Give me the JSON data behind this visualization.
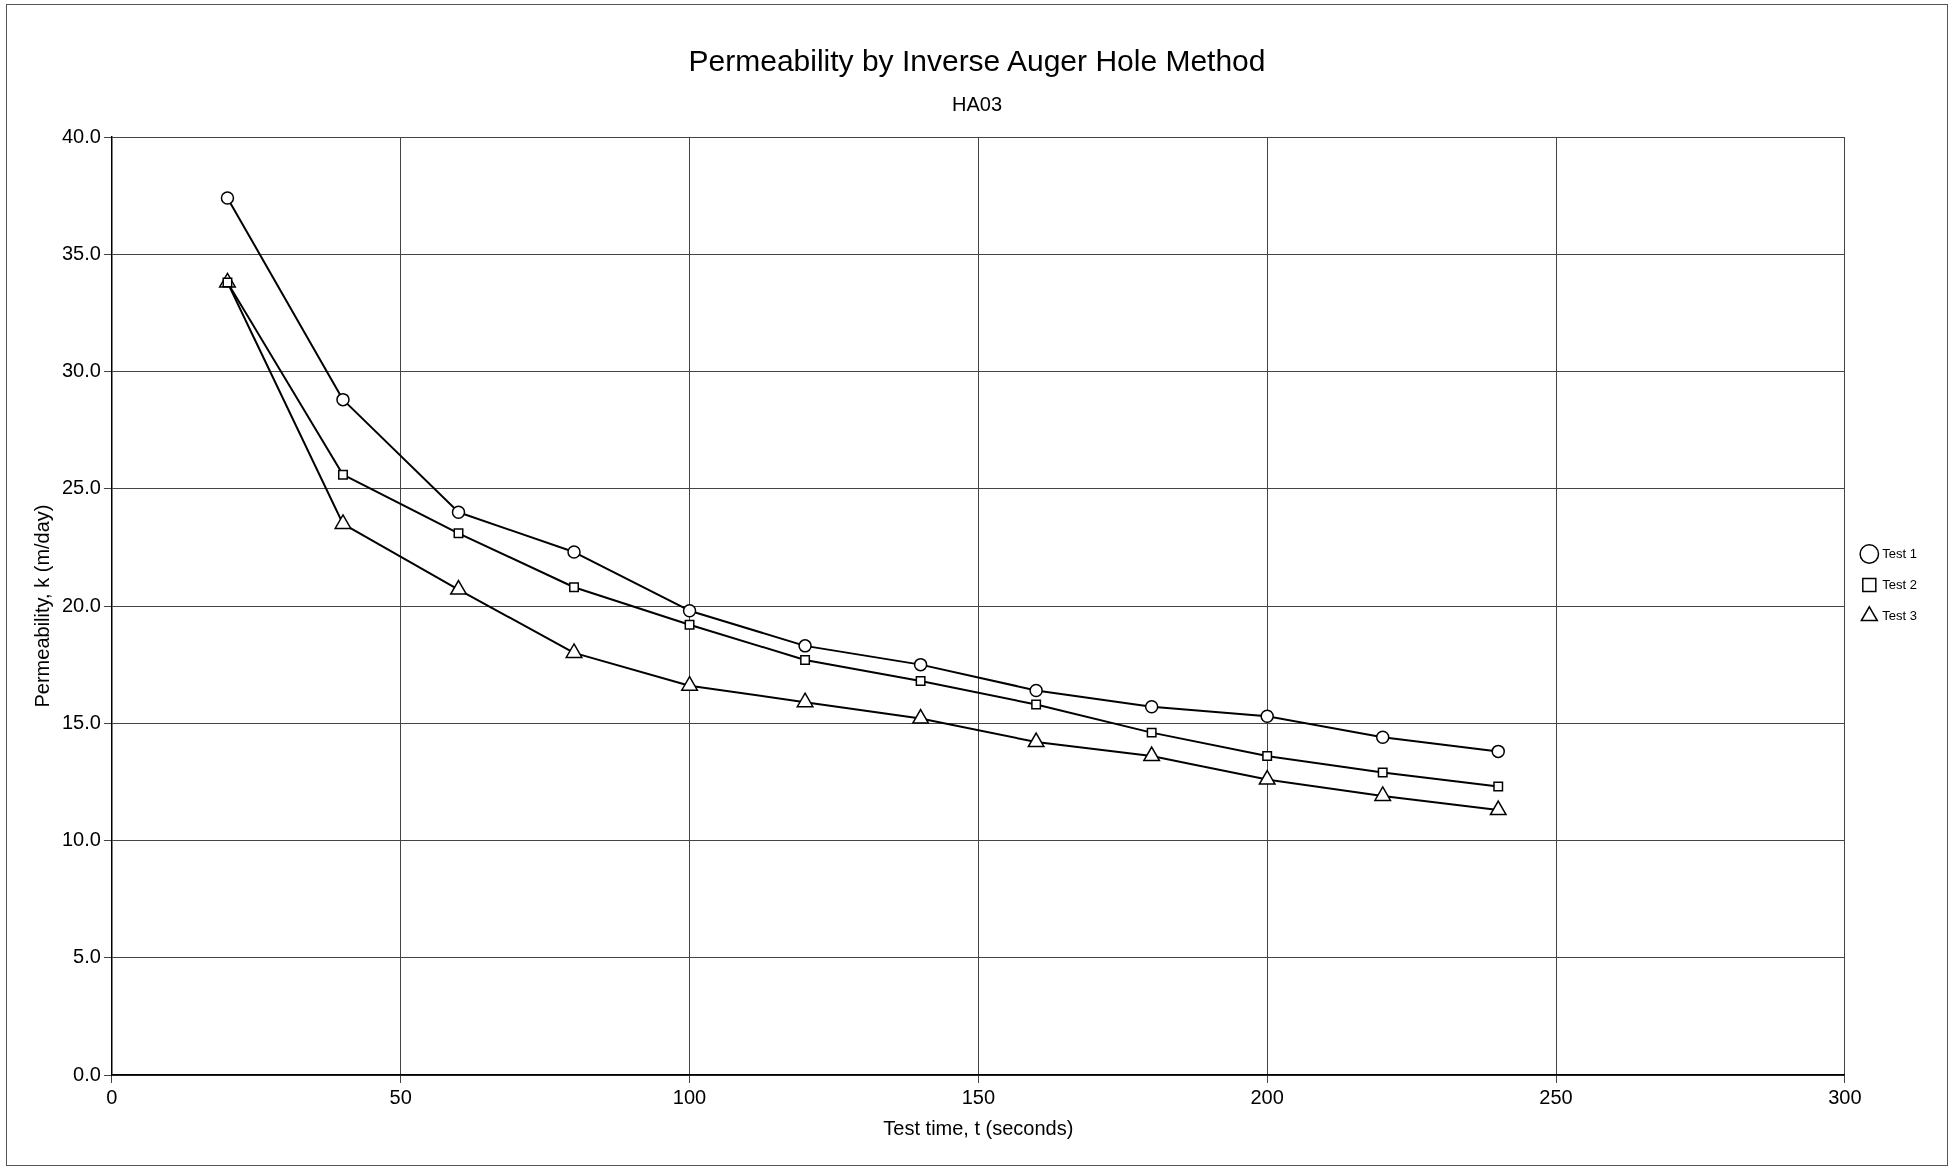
{
  "chart_data": {
    "type": "line",
    "title": "Permeability by Inverse Auger Hole Method",
    "subtitle": "HA03",
    "xlabel": "Test time, t (seconds)",
    "ylabel": "Permeability, k (m/day)",
    "x": [
      20,
      40,
      60,
      80,
      100,
      120,
      140,
      160,
      180,
      200,
      220,
      240
    ],
    "series": [
      {
        "name": "Test 1",
        "color": "#000000",
        "marker": "circle",
        "values": [
          37.4,
          28.8,
          24.0,
          22.3,
          19.8,
          18.3,
          17.5,
          16.4,
          15.7,
          15.3,
          14.4,
          13.8
        ]
      },
      {
        "name": "Test 2",
        "color": "#000000",
        "marker": "square",
        "values": [
          33.8,
          25.6,
          23.1,
          20.8,
          19.2,
          17.7,
          16.8,
          15.8,
          14.6,
          13.6,
          12.9,
          12.3
        ]
      },
      {
        "name": "Test 3",
        "color": "#000000",
        "marker": "triangle",
        "values": [
          33.8,
          23.5,
          20.7,
          18.0,
          16.6,
          15.9,
          15.2,
          14.2,
          13.6,
          12.6,
          11.9,
          11.3
        ]
      }
    ],
    "xlim": [
      0,
      300
    ],
    "xticks": [
      0,
      50,
      100,
      150,
      200,
      250,
      300
    ],
    "ylim": [
      0,
      40
    ],
    "yticks": [
      {
        "value": 0,
        "label": "0.0"
      },
      {
        "value": 5,
        "label": "5.0"
      },
      {
        "value": 10,
        "label": "10.0"
      },
      {
        "value": 15,
        "label": "15.0"
      },
      {
        "value": 20,
        "label": "20.0"
      },
      {
        "value": 25,
        "label": "25.0"
      },
      {
        "value": 30,
        "label": "30.0"
      },
      {
        "value": 35,
        "label": "35.0"
      },
      {
        "value": 40,
        "label": "40.0"
      }
    ],
    "grid": true,
    "legend": "right",
    "line_style": "solid"
  }
}
